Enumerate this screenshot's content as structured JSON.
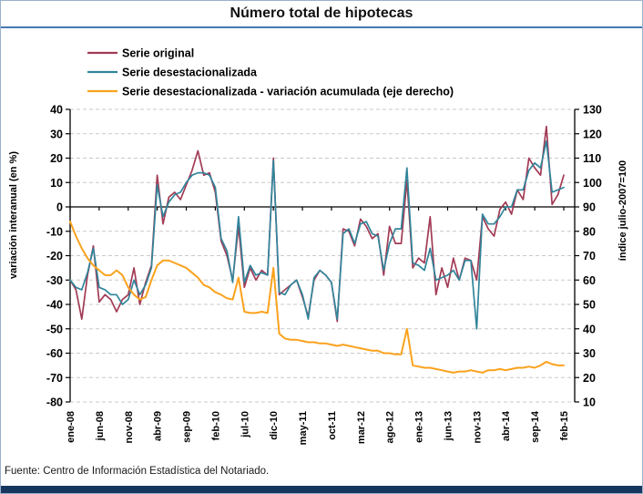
{
  "window": {
    "title": "Número total de hipotecas"
  },
  "footer": {
    "source": "Fuente: Centro de Información Estadística del Notariado."
  },
  "chart_data": {
    "type": "line",
    "title": "Número total de hipotecas",
    "x_count": 86,
    "x_tick_every": 5,
    "x_tick_labels": [
      "ene-08",
      "jun-08",
      "nov-08",
      "abr-09",
      "sep-09",
      "feb-10",
      "jul-10",
      "dic-10",
      "may-11",
      "oct-11",
      "mar-12",
      "ago-12",
      "ene-13",
      "jun-13",
      "nov-13",
      "abr-14",
      "sep-14",
      "feb-15"
    ],
    "left_axis": {
      "label": "variación interanual (en %)",
      "min": -80,
      "max": 40,
      "step": 10
    },
    "right_axis": {
      "label": "índice julio-2007=100",
      "min": 10,
      "max": 130,
      "step": 10
    },
    "grid": "horizontal-dashed",
    "legend_position": "top-left",
    "colors": {
      "grid": "#c9c9c9",
      "axis": "#000000",
      "zero_line": "#000000"
    },
    "series": [
      {
        "name": "Serie original",
        "axis": "left",
        "color": "#a23b55",
        "width": 1.7,
        "values": [
          -30,
          -34,
          -46,
          -28,
          -16,
          -39,
          -36,
          -38,
          -43,
          -38,
          -36,
          -25,
          -40,
          -31,
          -24,
          13,
          -7,
          4,
          6,
          3,
          9,
          15,
          23,
          13,
          14,
          6,
          -14,
          -20,
          -30,
          -8,
          -33,
          -25,
          -30,
          -26,
          -28,
          20,
          -36,
          -34,
          -32,
          -30,
          -37,
          -45,
          -30,
          -26,
          -28,
          -31,
          -47,
          -9,
          -10,
          -16,
          -5,
          -8,
          -13,
          -11,
          -28,
          -8,
          -15,
          -15,
          11,
          -25,
          -21,
          -23,
          -4,
          -36,
          -25,
          -33,
          -21,
          -30,
          -21,
          -22,
          -30,
          -4,
          -9,
          -12,
          -1,
          2,
          -3,
          7,
          3,
          20,
          16,
          13,
          33,
          1,
          5,
          13
        ]
      },
      {
        "name": "Serie desestacionalizada",
        "axis": "left",
        "color": "#31859b",
        "width": 1.7,
        "values": [
          -30,
          -33,
          -34,
          -27,
          -17,
          -33,
          -34,
          -36,
          -36,
          -40,
          -38,
          -30,
          -36,
          -32,
          -25,
          9,
          -4,
          2,
          5,
          6,
          10,
          13,
          14,
          14,
          13,
          8,
          -13,
          -18,
          -31,
          -4,
          -31,
          -24,
          -28,
          -27,
          -28,
          19,
          -35,
          -36,
          -32,
          -30,
          -36,
          -46,
          -29,
          -26,
          -28,
          -31,
          -46,
          -11,
          -9,
          -15,
          -7,
          -6,
          -11,
          -12,
          -26,
          -15,
          -9,
          -9,
          16,
          -23,
          -24,
          -26,
          -17,
          -30,
          -29,
          -28,
          -26,
          -30,
          -22,
          -22,
          -50,
          -3,
          -7,
          -7,
          -4,
          0,
          0,
          7,
          7,
          15,
          18,
          16,
          27,
          6,
          7,
          8
        ]
      },
      {
        "name": "Serie desestacionalizada - variación acumulada (eje derecho)",
        "axis": "right",
        "color": "#fba21d",
        "width": 2,
        "values": [
          84,
          78,
          73,
          69,
          66,
          64,
          62,
          62,
          64,
          62,
          57,
          54,
          52,
          53,
          60,
          66,
          68,
          68,
          67,
          66,
          65,
          63,
          61,
          58,
          57,
          55,
          54,
          52.5,
          52,
          61,
          47,
          46.5,
          46.5,
          47,
          46.5,
          65,
          38,
          36,
          35.5,
          35.5,
          35,
          34.5,
          34.5,
          34,
          34,
          33.5,
          33,
          33.5,
          33,
          32.5,
          32,
          31.5,
          31,
          31,
          30,
          30,
          29.5,
          29.5,
          40,
          25,
          24.5,
          24,
          24,
          23.5,
          23,
          22.5,
          22,
          22.5,
          22.5,
          23,
          22.5,
          22,
          23,
          23,
          23.5,
          23,
          23.5,
          24,
          24,
          24.5,
          24,
          25,
          26.5,
          25.5,
          25,
          25
        ]
      }
    ]
  }
}
